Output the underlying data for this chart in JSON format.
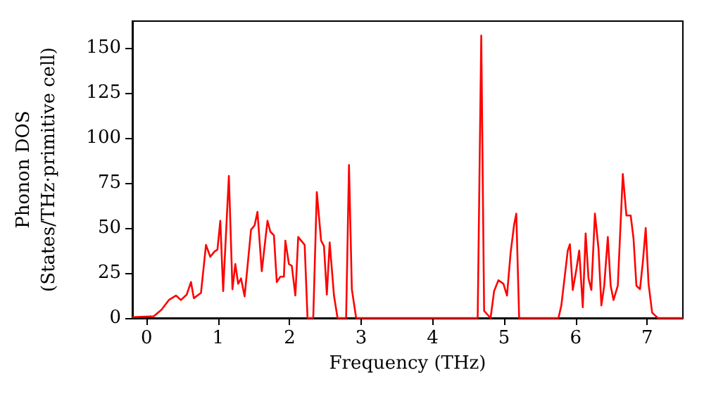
{
  "chart_data": {
    "type": "line",
    "xlabel": "Frequency (THz)",
    "ylabel": "Phonon DOS\n(States/THz·primitive cell)",
    "xlim": [
      -0.2,
      7.5
    ],
    "xticks": [
      0,
      1,
      2,
      3,
      4,
      5,
      6,
      7
    ],
    "ylim": [
      0,
      165
    ],
    "yticks": [
      0,
      25,
      50,
      75,
      100,
      125,
      150
    ],
    "grid": false,
    "marker": "none",
    "line_style": "solid",
    "series": [
      {
        "color": "#ff0000",
        "x": [
          -0.2,
          0.1,
          0.21,
          0.31,
          0.41,
          0.48,
          0.56,
          0.62,
          0.66,
          0.76,
          0.83,
          0.89,
          0.95,
          0.99,
          1.03,
          1.07,
          1.15,
          1.2,
          1.24,
          1.28,
          1.32,
          1.37,
          1.46,
          1.51,
          1.55,
          1.61,
          1.69,
          1.73,
          1.78,
          1.82,
          1.87,
          1.92,
          1.94,
          1.99,
          2.03,
          2.08,
          2.12,
          2.21,
          2.25,
          2.33,
          2.38,
          2.44,
          2.48,
          2.52,
          2.56,
          2.62,
          2.67,
          2.79,
          2.83,
          2.87,
          2.93,
          4.63,
          4.68,
          4.72,
          4.81,
          4.86,
          4.92,
          4.99,
          5.04,
          5.09,
          5.14,
          5.17,
          5.21,
          5.76,
          5.8,
          5.89,
          5.92,
          5.96,
          6.01,
          6.05,
          6.1,
          6.14,
          6.18,
          6.22,
          6.27,
          6.32,
          6.36,
          6.4,
          6.45,
          6.49,
          6.53,
          6.59,
          6.66,
          6.71,
          6.77,
          6.81,
          6.85,
          6.9,
          6.94,
          6.98,
          7.02,
          7.07,
          7.15,
          7.5
        ],
        "values": [
          0.5,
          1,
          4.7,
          10,
          12.5,
          10,
          13,
          20,
          11,
          14,
          40.6,
          34,
          37,
          38,
          54,
          15,
          79,
          16,
          30,
          19,
          22,
          12,
          49,
          51.5,
          59,
          26,
          54,
          48,
          46,
          20,
          23,
          23,
          43,
          30,
          29,
          12.5,
          45,
          40.6,
          0,
          0,
          70,
          43,
          40,
          13,
          42,
          12.5,
          0,
          0,
          85,
          16,
          0,
          0,
          157,
          4,
          0,
          15,
          21,
          19,
          12.5,
          36,
          52,
          58,
          0,
          0,
          7,
          37.5,
          41,
          15.6,
          27,
          37.5,
          6,
          47,
          22,
          15.6,
          58,
          38.5,
          7,
          18,
          45,
          18,
          10,
          18,
          80,
          57,
          57,
          44,
          18,
          16,
          31,
          50,
          19,
          3,
          0,
          0
        ]
      }
    ]
  }
}
